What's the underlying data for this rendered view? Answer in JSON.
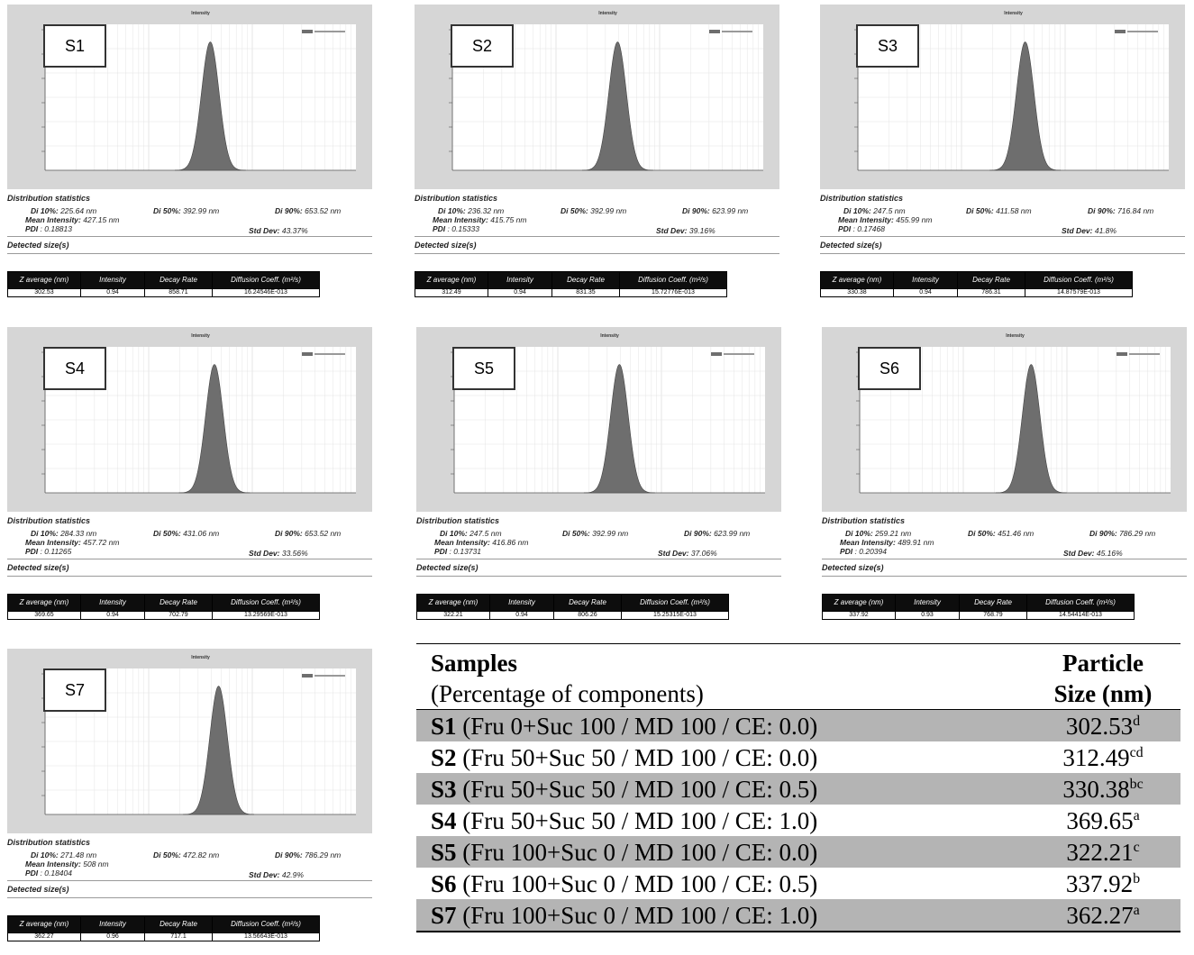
{
  "chart_data": [
    {
      "type": "area",
      "label": "S1",
      "title": "Intensity",
      "peak_nm": 392.99,
      "stats": {
        "header": "Distribution statistics",
        "di10": "225.64 nm",
        "di50": "392.99 nm",
        "di90": "653.52 nm",
        "mean": "427.15 nm",
        "pdi": ": 0.18813",
        "std": "43.37%",
        "detected": "Detected size(s)"
      },
      "table": {
        "z": "302.53",
        "intensity": "0.94",
        "decay": "858.71",
        "diff": "16.24546E-013"
      }
    },
    {
      "type": "area",
      "label": "S2",
      "title": "Intensity",
      "peak_nm": 392.99,
      "stats": {
        "header": "Distribution statistics",
        "di10": "236.32 nm",
        "di50": "392.99 nm",
        "di90": "623.99 nm",
        "mean": "415.75 nm",
        "pdi": ": 0.15333",
        "std": "39.16%",
        "detected": "Detected size(s)"
      },
      "table": {
        "z": "312.49",
        "intensity": "0.94",
        "decay": "831.35",
        "diff": "15.72776E-013"
      }
    },
    {
      "type": "area",
      "label": "S3",
      "title": "Intensity",
      "peak_nm": 411.58,
      "stats": {
        "header": "Distribution statistics",
        "di10": "247.5 nm",
        "di50": "411.58 nm",
        "di90": "716.84 nm",
        "mean": "455.99 nm",
        "pdi": ": 0.17468",
        "std": "41.8%",
        "detected": "Detected size(s)"
      },
      "table": {
        "z": "330.38",
        "intensity": "0.94",
        "decay": "786.31",
        "diff": "14.87579E-013"
      }
    },
    {
      "type": "area",
      "label": "S4",
      "title": "Intensity",
      "peak_nm": 431.06,
      "stats": {
        "header": "Distribution statistics",
        "di10": "284.33 nm",
        "di50": "431.06 nm",
        "di90": "653.52 nm",
        "mean": "457.72 nm",
        "pdi": ": 0.11265",
        "std": "33.56%",
        "detected": "Detected size(s)"
      },
      "table": {
        "z": "369.65",
        "intensity": "0.94",
        "decay": "702.79",
        "diff": "13.29569E-013"
      }
    },
    {
      "type": "area",
      "label": "S5",
      "title": "Intensity",
      "peak_nm": 392.99,
      "stats": {
        "header": "Distribution statistics",
        "di10": "247.5 nm",
        "di50": "392.99 nm",
        "di90": "623.99 nm",
        "mean": "416.86 nm",
        "pdi": ": 0.13731",
        "std": "37.06%",
        "detected": "Detected size(s)"
      },
      "table": {
        "z": "322.21",
        "intensity": "0.94",
        "decay": "806.26",
        "diff": "15.25315E-013"
      }
    },
    {
      "type": "area",
      "label": "S6",
      "title": "Intensity",
      "peak_nm": 451.46,
      "stats": {
        "header": "Distribution statistics",
        "di10": "259.21 nm",
        "di50": "451.46 nm",
        "di90": "786.29 nm",
        "mean": "489.91 nm",
        "pdi": ": 0.20394",
        "std": "45.16%",
        "detected": "Detected size(s)"
      },
      "table": {
        "z": "337.92",
        "intensity": "0.93",
        "decay": "768.79",
        "diff": "14.54414E-013"
      }
    },
    {
      "type": "area",
      "label": "S7",
      "title": "Intensity",
      "peak_nm": 472.82,
      "stats": {
        "header": "Distribution statistics",
        "di10": "271.48 nm",
        "di50": "472.82 nm",
        "di90": "786.29 nm",
        "mean": "508 nm",
        "pdi": ": 0.18404",
        "std": "42.9%",
        "detected": "Detected size(s)"
      },
      "table": {
        "z": "362.27",
        "intensity": "0.96",
        "decay": "717.1",
        "diff": "13.56643E-013"
      }
    }
  ],
  "labels": {
    "di10": "Di 10%:",
    "di50": "Di 50%:",
    "di90": "Di 90%:",
    "mean": "Mean Intensity:",
    "pdi": "PDI",
    "std": "Std Dev:",
    "col_z": "Z average (nm)",
    "col_int": "Intensity",
    "col_decay": "Decay Rate",
    "col_diff": "Diffusion Coeff. (m²/s)"
  },
  "summary_table": {
    "header_samples": "Samples",
    "header_samples_sub": "(Percentage of components)",
    "header_size": "Particle Size (nm)",
    "rows": [
      {
        "id": "S1",
        "desc": " (Fru 0+Suc 100 / MD 100 / CE: 0.0)",
        "size": "302.53",
        "sup": "d"
      },
      {
        "id": "S2",
        "desc": " (Fru 50+Suc 50 / MD 100 / CE: 0.0)",
        "size": "312.49",
        "sup": "cd"
      },
      {
        "id": "S3",
        "desc": " (Fru 50+Suc 50 / MD 100 / CE: 0.5)",
        "size": "330.38",
        "sup": "bc"
      },
      {
        "id": "S4",
        "desc": " (Fru 50+Suc 50 / MD 100 / CE: 1.0)",
        "size": "369.65",
        "sup": "a"
      },
      {
        "id": "S5",
        "desc": " (Fru 100+Suc 0 / MD 100 / CE: 0.0)",
        "size": "322.21",
        "sup": "c"
      },
      {
        "id": "S6",
        "desc": " (Fru 100+Suc 0 / MD 100 / CE: 0.5)",
        "size": "337.92",
        "sup": "b"
      },
      {
        "id": "S7",
        "desc": " (Fru 100+Suc 0 / MD 100 / CE: 1.0)",
        "size": "362.27",
        "sup": "a"
      }
    ]
  },
  "colors": {
    "frame": "#d6d6d6",
    "plot_bg": "#ffffff",
    "peak_fill": "#6e6e6e",
    "grid": "#e4e4e4",
    "shade": "#b4b4b4"
  }
}
